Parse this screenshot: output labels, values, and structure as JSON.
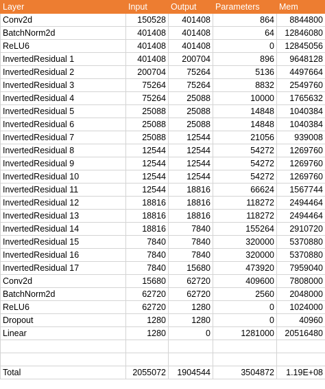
{
  "columns": [
    "Layer",
    "Input",
    "Output",
    "Parameters",
    "Mem"
  ],
  "colors": {
    "header_bg": "#ed7d31",
    "header_text": "#ffffff",
    "grid": "#d4d4d4"
  },
  "rows": [
    [
      "Conv2d",
      "150528",
      "401408",
      "864",
      "8844800"
    ],
    [
      "BatchNorm2d",
      "401408",
      "401408",
      "64",
      "12846080"
    ],
    [
      "ReLU6",
      "401408",
      "401408",
      "0",
      "12845056"
    ],
    [
      "InvertedResidual 1",
      "401408",
      "200704",
      "896",
      "9648128"
    ],
    [
      "InvertedResidual 2",
      "200704",
      "75264",
      "5136",
      "4497664"
    ],
    [
      "InvertedResidual 3",
      "75264",
      "75264",
      "8832",
      "2549760"
    ],
    [
      "InvertedResidual 4",
      "75264",
      "25088",
      "10000",
      "1765632"
    ],
    [
      "InvertedResidual 5",
      "25088",
      "25088",
      "14848",
      "1040384"
    ],
    [
      "InvertedResidual 6",
      "25088",
      "25088",
      "14848",
      "1040384"
    ],
    [
      "InvertedResidual 7",
      "25088",
      "12544",
      "21056",
      "939008"
    ],
    [
      "InvertedResidual 8",
      "12544",
      "12544",
      "54272",
      "1269760"
    ],
    [
      "InvertedResidual 9",
      "12544",
      "12544",
      "54272",
      "1269760"
    ],
    [
      "InvertedResidual 10",
      "12544",
      "12544",
      "54272",
      "1269760"
    ],
    [
      "InvertedResidual 11",
      "12544",
      "18816",
      "66624",
      "1567744"
    ],
    [
      "InvertedResidual 12",
      "18816",
      "18816",
      "118272",
      "2494464"
    ],
    [
      "InvertedResidual 13",
      "18816",
      "18816",
      "118272",
      "2494464"
    ],
    [
      "InvertedResidual 14",
      "18816",
      "7840",
      "155264",
      "2910720"
    ],
    [
      "InvertedResidual 15",
      "7840",
      "7840",
      "320000",
      "5370880"
    ],
    [
      "InvertedResidual 16",
      "7840",
      "7840",
      "320000",
      "5370880"
    ],
    [
      "InvertedResidual 17",
      "7840",
      "15680",
      "473920",
      "7959040"
    ],
    [
      "Conv2d",
      "15680",
      "62720",
      "409600",
      "7808000"
    ],
    [
      "BatchNorm2d",
      "62720",
      "62720",
      "2560",
      "2048000"
    ],
    [
      "ReLU6",
      "62720",
      "1280",
      "0",
      "1024000"
    ],
    [
      "Dropout",
      "1280",
      "1280",
      "0",
      "40960"
    ],
    [
      "Linear",
      "1280",
      "0",
      "1281000",
      "20516480"
    ]
  ],
  "total": [
    "Total",
    "2055072",
    "1904544",
    "3504872",
    "1.19E+08"
  ]
}
